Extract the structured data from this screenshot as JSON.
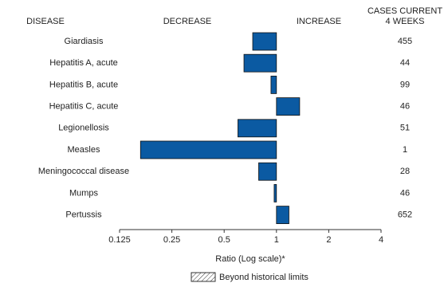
{
  "chart_data": {
    "type": "bar",
    "orientation": "horizontal",
    "headers": {
      "disease": "DISEASE",
      "decrease": "DECREASE",
      "increase": "INCREASE",
      "cases": [
        "CASES CURRENT",
        "4 WEEKS"
      ]
    },
    "categories": [
      "Giardiasis",
      "Hepatitis A, acute",
      "Hepatitis B, acute",
      "Hepatitis C, acute",
      "Legionellosis",
      "Measles",
      "Meningococcal disease",
      "Mumps",
      "Pertussis"
    ],
    "values": [
      0.73,
      0.65,
      0.93,
      1.36,
      0.6,
      0.165,
      0.79,
      0.97,
      1.18
    ],
    "cases": [
      455,
      44,
      99,
      46,
      51,
      1,
      28,
      46,
      652
    ],
    "color": "#0b5aa2",
    "xscale": "log",
    "baseline": 1,
    "xlim": [
      0.125,
      4
    ],
    "xticks": [
      0.125,
      0.25,
      0.5,
      1,
      2,
      4
    ],
    "xlabel": "Ratio (Log scale)*",
    "legend": "Beyond historical limits"
  }
}
